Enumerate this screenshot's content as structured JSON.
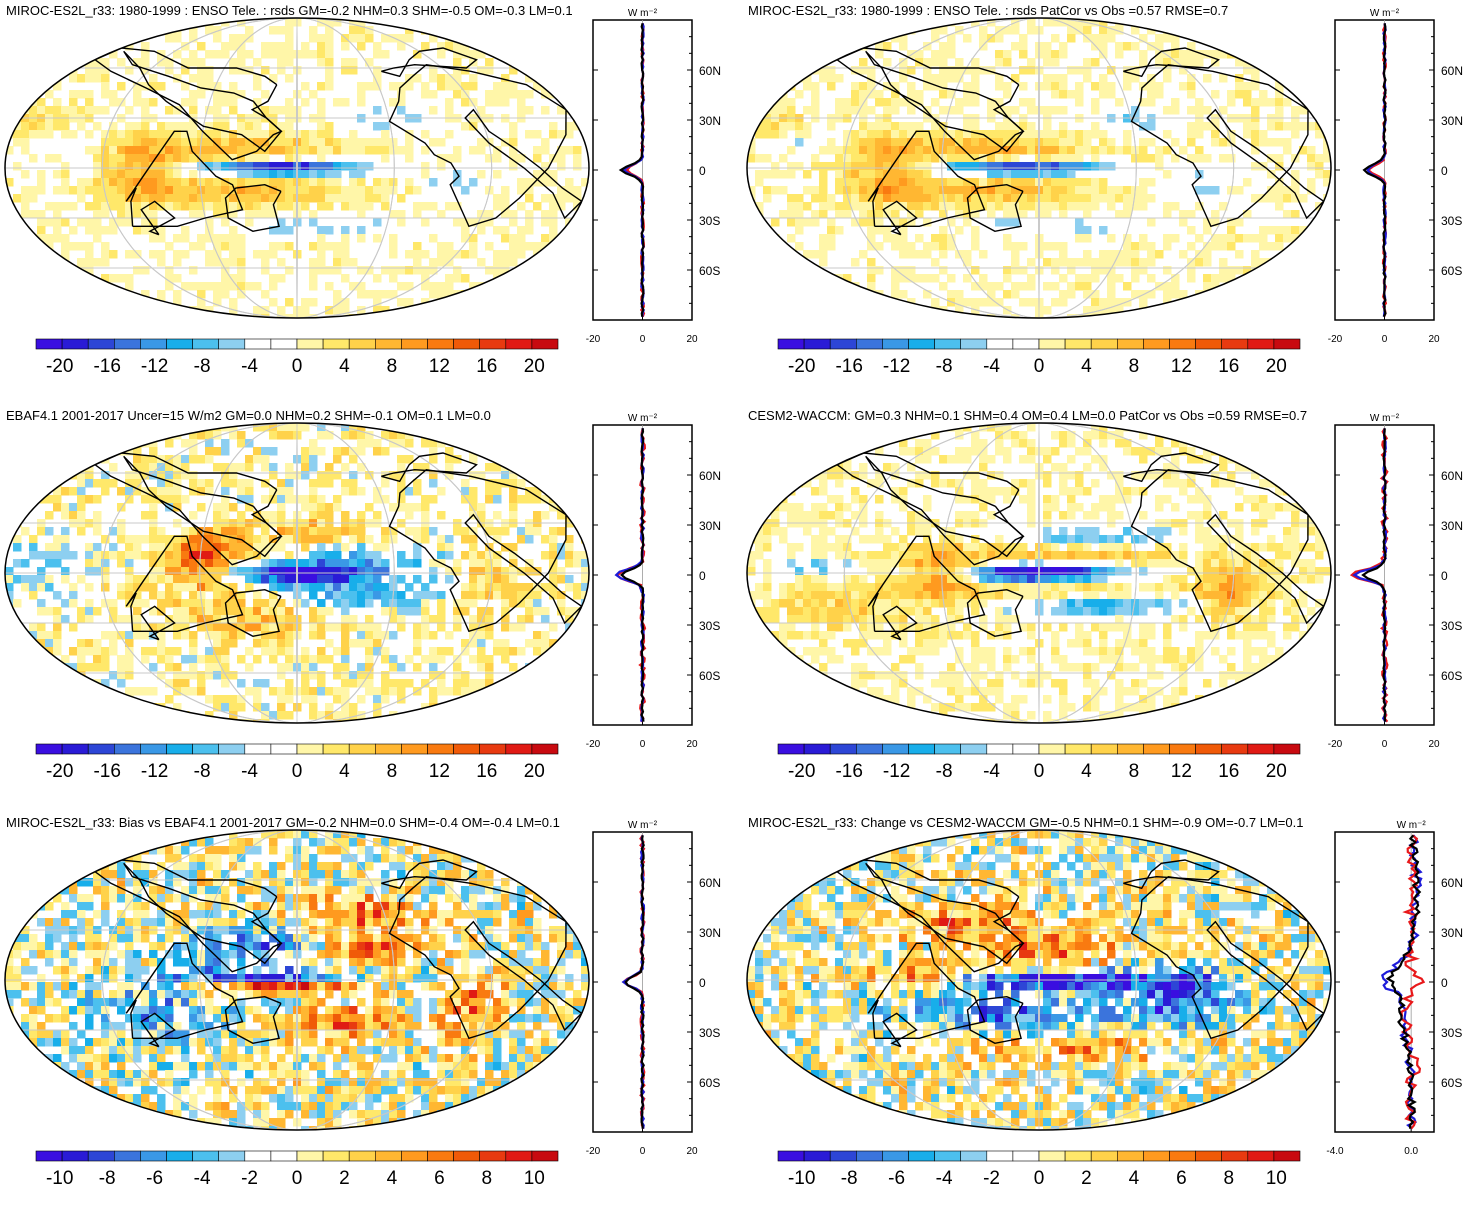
{
  "chart_data": [
    {
      "type": "heatmap",
      "title": "MIROC-ES2L_r33: 1980-1999 : ENSO Tele. : rsds GM=-0.2 NHM=0.3 SHM=-0.5 OM=-0.3 LM=0.1",
      "colorbar": {
        "range": [
          -22,
          22
        ],
        "ticks": [
          -20,
          -16,
          -12,
          -8,
          -4,
          0,
          4,
          8,
          12,
          16,
          20
        ],
        "tick_labels": [
          "-20",
          "-16",
          "-12",
          "-8",
          "-4",
          "0",
          "4",
          "8",
          "12",
          "16",
          "20"
        ]
      },
      "side_plot": {
        "units": "W m⁻²",
        "xlim": [
          -20,
          20
        ],
        "x_tick_labels": [
          "-20",
          "0",
          "20"
        ],
        "lat_tick_labels": [
          "60N",
          "30N",
          "0",
          "30S",
          "60S"
        ],
        "series": [
          {
            "name": "red",
            "color": "#e8191b",
            "scale": 0.1,
            "noise": 0.6
          },
          {
            "name": "blue",
            "color": "#1d1bd9",
            "scale": 0.12,
            "noise": 0.5
          },
          {
            "name": "black",
            "color": "#000000",
            "scale": 0.14,
            "noise": 0.4
          }
        ]
      },
      "pattern": "model"
    },
    {
      "type": "heatmap",
      "title": "MIROC-ES2L_r33: 1980-1999 : ENSO Tele. : rsds PatCor vs Obs =0.57 RMSE=0.7",
      "colorbar": {
        "range": [
          -22,
          22
        ],
        "ticks": [
          -20,
          -16,
          -12,
          -8,
          -4,
          0,
          4,
          8,
          12,
          16,
          20
        ],
        "tick_labels": [
          "-20",
          "-16",
          "-12",
          "-8",
          "-4",
          "0",
          "4",
          "8",
          "12",
          "16",
          "20"
        ]
      },
      "side_plot": {
        "units": "W m⁻²",
        "xlim": [
          -20,
          20
        ],
        "x_tick_labels": [
          "-20",
          "0",
          "20"
        ],
        "lat_tick_labels": [
          "60N",
          "30N",
          "0",
          "30S",
          "60S"
        ],
        "series": [
          {
            "name": "red",
            "color": "#e8191b",
            "scale": 0.1,
            "noise": 0.6
          },
          {
            "name": "blue",
            "color": "#1d1bd9",
            "scale": 0.12,
            "noise": 0.5
          },
          {
            "name": "black",
            "color": "#000000",
            "scale": 0.14,
            "noise": 0.4
          }
        ]
      },
      "pattern": "model"
    },
    {
      "type": "heatmap",
      "title": "EBAF4.1 2001-2017 Uncer=15 W/m2 GM=0.0 NHM=0.2 SHM=-0.1 OM=0.1 LM=0.0",
      "colorbar": {
        "range": [
          -22,
          22
        ],
        "ticks": [
          -20,
          -16,
          -12,
          -8,
          -4,
          0,
          4,
          8,
          12,
          16,
          20
        ],
        "tick_labels": [
          "-20",
          "-16",
          "-12",
          "-8",
          "-4",
          "0",
          "4",
          "8",
          "12",
          "16",
          "20"
        ]
      },
      "side_plot": {
        "units": "W m⁻²",
        "xlim": [
          -20,
          20
        ],
        "x_tick_labels": [
          "-20",
          "0",
          "20"
        ],
        "lat_tick_labels": [
          "60N",
          "30N",
          "0",
          "30S",
          "60S"
        ],
        "series": [
          {
            "name": "red",
            "color": "#e8191b",
            "scale": 0.18,
            "noise": 1.0
          },
          {
            "name": "blue",
            "color": "#1d1bd9",
            "scale": 0.18,
            "noise": 0.6
          },
          {
            "name": "black",
            "color": "#000000",
            "scale": 0.14,
            "noise": 0.4
          }
        ]
      },
      "pattern": "obs"
    },
    {
      "type": "heatmap",
      "title": "CESM2-WACCM: GM=0.3 NHM=0.1 SHM=0.4 OM=0.4 LM=0.0 PatCor vs Obs =0.59 RMSE=0.7",
      "colorbar": {
        "range": [
          -22,
          22
        ],
        "ticks": [
          -20,
          -16,
          -12,
          -8,
          -4,
          0,
          4,
          8,
          12,
          16,
          20
        ],
        "tick_labels": [
          "-20",
          "-16",
          "-12",
          "-8",
          "-4",
          "0",
          "4",
          "8",
          "12",
          "16",
          "20"
        ]
      },
      "side_plot": {
        "units": "W m⁻²",
        "xlim": [
          -20,
          20
        ],
        "x_tick_labels": [
          "-20",
          "0",
          "20"
        ],
        "lat_tick_labels": [
          "60N",
          "30N",
          "0",
          "30S",
          "60S"
        ],
        "series": [
          {
            "name": "red",
            "color": "#e8191b",
            "scale": 0.22,
            "noise": 1.2
          },
          {
            "name": "blue",
            "color": "#1d1bd9",
            "scale": 0.2,
            "noise": 0.6
          },
          {
            "name": "black",
            "color": "#000000",
            "scale": 0.14,
            "noise": 0.4
          }
        ]
      },
      "pattern": "cesm"
    },
    {
      "type": "heatmap",
      "title": "MIROC-ES2L_r33: Bias vs EBAF4.1 2001-2017 GM=-0.2 NHM=0.0 SHM=-0.4 OM=-0.4 LM=0.1",
      "colorbar": {
        "range": [
          -11,
          11
        ],
        "ticks": [
          -10,
          -8,
          -6,
          -4,
          -2,
          0,
          2,
          4,
          6,
          8,
          10
        ],
        "tick_labels": [
          "-10",
          "-8",
          "-6",
          "-4",
          "-2",
          "0",
          "2",
          "4",
          "6",
          "8",
          "10"
        ]
      },
      "side_plot": {
        "units": "W m⁻²",
        "xlim": [
          -20,
          20
        ],
        "x_tick_labels": [
          "-20",
          "0",
          "20"
        ],
        "lat_tick_labels": [
          "60N",
          "30N",
          "0",
          "30S",
          "60S"
        ],
        "series": [
          {
            "name": "red",
            "color": "#e8191b",
            "scale": 0.12,
            "noise": 0.8
          },
          {
            "name": "blue",
            "color": "#1d1bd9",
            "scale": 0.12,
            "noise": 0.6
          },
          {
            "name": "black",
            "color": "#000000",
            "scale": 0.12,
            "noise": 0.5
          }
        ]
      },
      "pattern": "bias"
    },
    {
      "type": "heatmap",
      "title": "MIROC-ES2L_r33: Change vs CESM2-WACCM GM=-0.5 NHM=0.1 SHM=-0.9 OM=-0.7 LM=0.1",
      "colorbar": {
        "range": [
          -11,
          11
        ],
        "ticks": [
          -10,
          -8,
          -6,
          -4,
          -2,
          0,
          2,
          4,
          6,
          8,
          10
        ],
        "tick_labels": [
          "-10",
          "-8",
          "-6",
          "-4",
          "-2",
          "0",
          "2",
          "4",
          "6",
          "8",
          "10"
        ]
      },
      "side_plot": {
        "units": "W m⁻²",
        "xlim": [
          -4.0,
          1.2
        ],
        "x_tick_labels": [
          "-4.0",
          "0.0"
        ],
        "x_tick_values": [
          -4.0,
          0.0
        ],
        "lat_tick_labels": [
          "60N",
          "30N",
          "0",
          "30S",
          "60S"
        ],
        "series": [
          {
            "name": "blue",
            "color": "#1d1bd9",
            "scale": 1.0,
            "noise": 0.5
          },
          {
            "name": "red",
            "color": "#e8191b",
            "scale": 1.0,
            "noise": 0.6
          },
          {
            "name": "black",
            "color": "#000000",
            "scale": 1.0,
            "noise": 0.4
          }
        ]
      },
      "pattern": "change"
    }
  ],
  "palette": [
    "#3a0ee0",
    "#2a1bd6",
    "#2d46d6",
    "#3b74dc",
    "#3a98e6",
    "#18aeea",
    "#4cc0ee",
    "#8dcff0",
    "#ffffff",
    "#ffffff",
    "#fff6a8",
    "#ffe86a",
    "#ffd24a",
    "#ffb732",
    "#ff9a1f",
    "#f97a10",
    "#f05a08",
    "#e83a10",
    "#e01a14",
    "#c80a10"
  ]
}
